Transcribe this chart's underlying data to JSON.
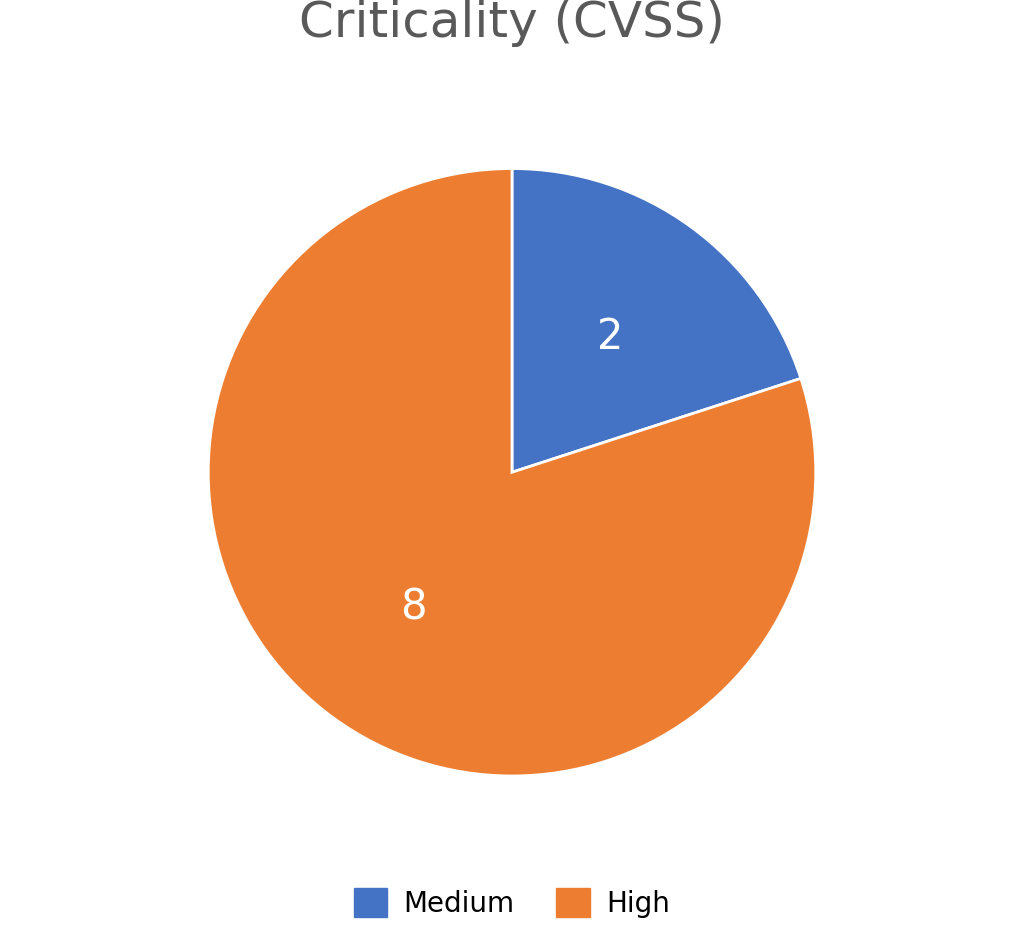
{
  "title": "Criticality (CVSS)",
  "slices": [
    2,
    8
  ],
  "labels": [
    "Medium",
    "High"
  ],
  "colors": [
    "#4472C4",
    "#ED7D31"
  ],
  "label_values": [
    "2",
    "8"
  ],
  "background_color": "#ffffff",
  "title_fontsize": 36,
  "title_color": "#595959",
  "legend_fontsize": 20,
  "label_fontsize": 30,
  "label_color": "#ffffff",
  "startangle": 90
}
